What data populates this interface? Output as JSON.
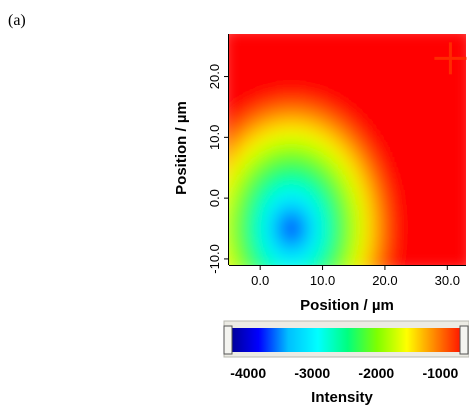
{
  "panel_label": "(a)",
  "chart_data": [
    {
      "type": "heatmap",
      "title": "",
      "xlabel": "Position / µm",
      "ylabel": "Position / µm",
      "x_ticks": [
        "0.0",
        "10.0",
        "20.0",
        "30.0"
      ],
      "x_tick_values": [
        0,
        10,
        20,
        30
      ],
      "y_ticks": [
        "-10.0",
        "0.0",
        "10.0",
        "20.0"
      ],
      "y_tick_values": [
        -10,
        0,
        10,
        20
      ],
      "xlim": [
        -5,
        33
      ],
      "ylim": [
        -11,
        27
      ],
      "field": {
        "description_shape": "intensity minimum near lower-left, rising toward top and right edges",
        "min": {
          "x": 5,
          "y": -5,
          "value": -4000
        },
        "max_value": -600
      },
      "marker": {
        "symbol": "+",
        "x": 30.5,
        "y": 23,
        "color": "#ff2a00"
      },
      "grid": false
    },
    {
      "type": "colorbar",
      "xlabel": "Intensity",
      "ticks": [
        "-4000",
        "-3000",
        "-2000",
        "-1000"
      ],
      "tick_values": [
        -4000,
        -3000,
        -2000,
        -1000
      ],
      "range": [
        -4300,
        -600
      ],
      "colormap": [
        "#00008f",
        "#0000ff",
        "#00bfff",
        "#00ffff",
        "#00ff7f",
        "#7fff00",
        "#ffff00",
        "#ff7f00",
        "#ff0000"
      ]
    }
  ]
}
